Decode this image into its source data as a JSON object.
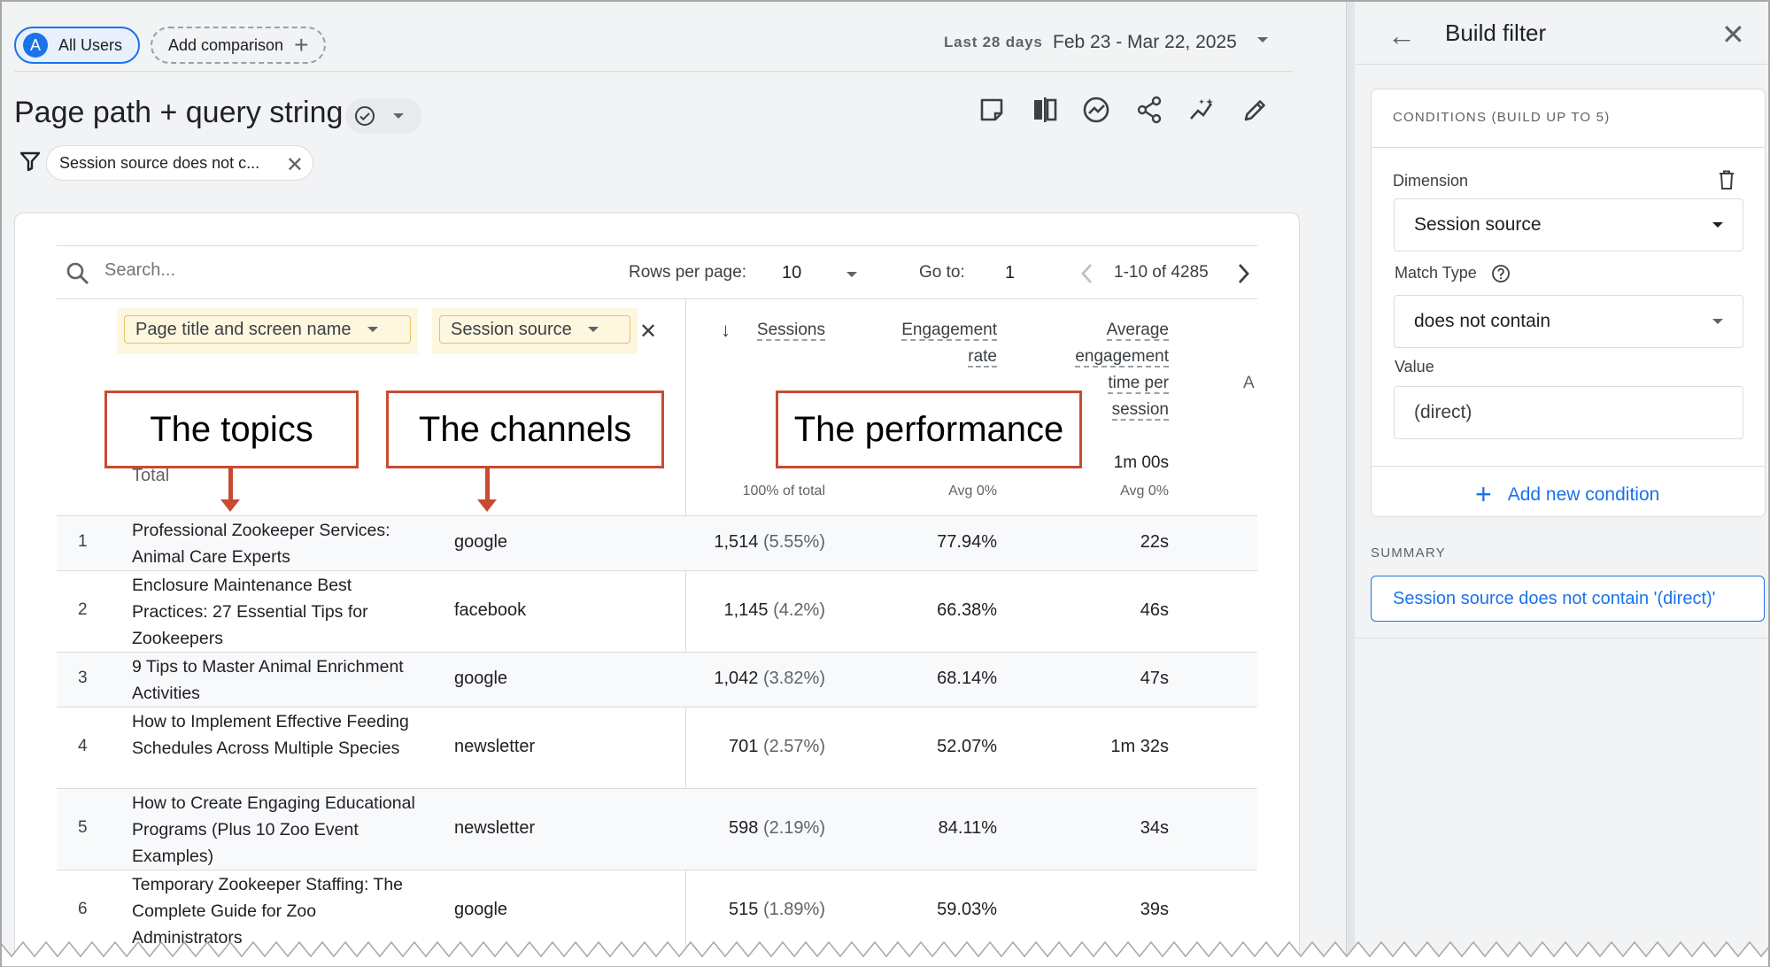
{
  "header": {
    "segment_avatar": "A",
    "segment_label": "All Users",
    "add_comparison_label": "Add comparison",
    "date_prefix": "Last 28 days",
    "date_range": "Feb 23 - Mar 22, 2025"
  },
  "report": {
    "title": "Page path + query string",
    "filter_chip": "Session source does not c...",
    "toolbar_icons": [
      "customize-report-icon",
      "compare-icon",
      "insights-icon",
      "share-icon",
      "trends-icon",
      "edit-icon"
    ]
  },
  "table": {
    "search_placeholder": "Search...",
    "rows_per_page_label": "Rows per page:",
    "rows_per_page_value": "10",
    "goto_label": "Go to:",
    "goto_value": "1",
    "pager": "1-10 of 4285",
    "dimensions": [
      "Page title and screen name",
      "Session source"
    ],
    "columns": {
      "sessions": "Sessions",
      "engagement_rate_1": "Engagement",
      "engagement_rate_2": "rate",
      "avg_time": [
        "Average",
        "engagement",
        "time per",
        "session"
      ],
      "extra": "A"
    },
    "totals": {
      "label": "Total",
      "sessions_sub": "100% of total",
      "engagement_sub": "Avg 0%",
      "avg_time": "1m 00s",
      "avg_time_sub": "Avg 0%"
    },
    "rows": [
      {
        "idx": "1",
        "title": "Professional Zookeeper Services: Animal Care Experts",
        "source": "google",
        "sessions": "1,514",
        "pct": "(5.55%)",
        "engagement": "77.94%",
        "avg_time": "22s"
      },
      {
        "idx": "2",
        "title": "Enclosure Maintenance Best Practices: 27 Essential Tips for Zookeepers",
        "source": "facebook",
        "sessions": "1,145",
        "pct": "(4.2%)",
        "engagement": "66.38%",
        "avg_time": "46s"
      },
      {
        "idx": "3",
        "title": "9 Tips to Master Animal Enrichment Activities",
        "source": "google",
        "sessions": "1,042",
        "pct": "(3.82%)",
        "engagement": "68.14%",
        "avg_time": "47s"
      },
      {
        "idx": "4",
        "title": "How to Implement Effective Feeding Schedules Across Multiple Species",
        "source": "newsletter",
        "sessions": "701",
        "pct": "(2.57%)",
        "engagement": "52.07%",
        "avg_time": "1m 32s"
      },
      {
        "idx": "5",
        "title": "How to Create Engaging Educational Programs (Plus 10 Zoo Event Examples)",
        "source": "newsletter",
        "sessions": "598",
        "pct": "(2.19%)",
        "engagement": "84.11%",
        "avg_time": "34s"
      },
      {
        "idx": "6",
        "title": "Temporary Zookeeper Staffing: The Complete Guide for Zoo Administrators",
        "source": "google",
        "sessions": "515",
        "pct": "(1.89%)",
        "engagement": "59.03%",
        "avg_time": "39s"
      }
    ]
  },
  "annotations": {
    "topics": "The topics",
    "channels": "The channels",
    "performance": "The performance"
  },
  "panel": {
    "title": "Build filter",
    "conditions_header": "CONDITIONS (BUILD UP TO 5)",
    "dimension_label": "Dimension",
    "dimension_value": "Session source",
    "match_type_label": "Match Type",
    "match_type_value": "does not contain",
    "value_label": "Value",
    "value_value": "(direct)",
    "add_condition": "Add new condition",
    "summary_label": "SUMMARY",
    "summary_text": "Session source does not contain '(direct)'"
  },
  "colors": {
    "accent": "#1a73e8",
    "annotation": "#c84b31",
    "dimension_chip": "#fef7e0"
  }
}
